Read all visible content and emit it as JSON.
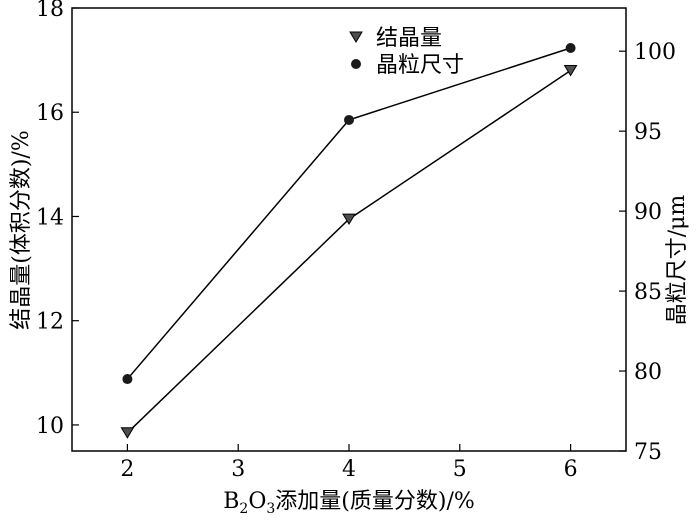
{
  "chart_data": {
    "type": "line",
    "x": [
      2,
      4,
      6
    ],
    "xlim": [
      1.5,
      6.5
    ],
    "xticks": [
      2,
      3,
      4,
      5,
      6
    ],
    "xlabel_parts": [
      "B",
      "2",
      "O",
      "3",
      "添加量(质量分数)/%"
    ],
    "ylabel": "结晶量(体积分数)/%",
    "ylim": [
      9.5,
      18
    ],
    "yticks": [
      10,
      12,
      14,
      16,
      18
    ],
    "y2label": "晶粒尺寸/μm",
    "y2lim": [
      75,
      102.7
    ],
    "y2ticks": [
      75,
      80,
      85,
      90,
      95,
      100
    ],
    "series": [
      {
        "name": "结晶量",
        "axis": "left",
        "marker": "triangle-down",
        "values": [
          9.85,
          13.95,
          16.8
        ]
      },
      {
        "name": "晶粒尺寸",
        "axis": "right",
        "marker": "circle",
        "values": [
          79.5,
          95.7,
          100.2
        ]
      }
    ],
    "grid": false,
    "legend_position": "top-right"
  }
}
